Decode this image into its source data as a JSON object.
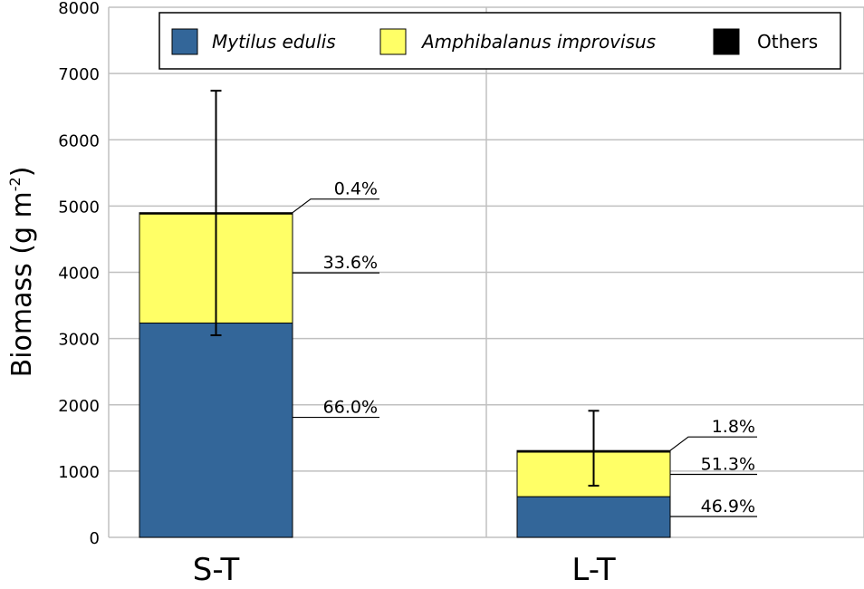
{
  "chart_data": {
    "type": "bar",
    "stacked": true,
    "title": "",
    "xlabel": "",
    "ylabel": "Biomass (g m",
    "ylabel_superscript": "-2",
    "ylabel_close": ")",
    "ylim": [
      0,
      8000
    ],
    "yticks": [
      0,
      1000,
      2000,
      3000,
      4000,
      5000,
      6000,
      7000,
      8000
    ],
    "grid": true,
    "legend_position": "top",
    "categories": [
      "S-T",
      "L-T"
    ],
    "series": [
      {
        "name": "Mytilus edulis",
        "italic": true,
        "color": "#336699",
        "values": [
          3234,
          614
        ],
        "labels": [
          "66.0%",
          "46.9%"
        ]
      },
      {
        "name": "Amphibalanus improvisus",
        "italic": true,
        "color": "#ffff66",
        "values": [
          1646,
          672
        ],
        "labels": [
          "33.6%",
          "51.3%"
        ]
      },
      {
        "name": "Others",
        "italic": false,
        "color": "#000000",
        "values": [
          20,
          24
        ],
        "labels": [
          "0.4%",
          "1.8%"
        ]
      }
    ],
    "error_bars": [
      {
        "category": "S-T",
        "low": 3050,
        "high": 6740
      },
      {
        "category": "L-T",
        "low": 780,
        "high": 1910
      }
    ]
  }
}
